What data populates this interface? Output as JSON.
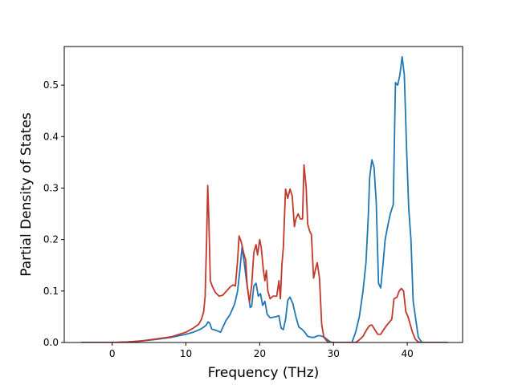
{
  "chart_data": {
    "type": "line",
    "title": "",
    "xlabel": "Frequency (THz)",
    "ylabel": "Partial Density of States",
    "xlim": [
      -6.5,
      47.5
    ],
    "ylim": [
      0,
      0.575
    ],
    "xticks": [
      "0",
      "10",
      "20",
      "30",
      "40"
    ],
    "yticks": [
      "0.0",
      "0.1",
      "0.2",
      "0.3",
      "0.4",
      "0.5"
    ],
    "grid": false,
    "legend": "none",
    "series": [
      {
        "color": "#1f77b4",
        "points": [
          [
            -4.2,
            0
          ],
          [
            0,
            0
          ],
          [
            2,
            0.001
          ],
          [
            4,
            0.003
          ],
          [
            6,
            0.006
          ],
          [
            8,
            0.01
          ],
          [
            10,
            0.016
          ],
          [
            11,
            0.02
          ],
          [
            12,
            0.026
          ],
          [
            12.7,
            0.033
          ],
          [
            13,
            0.04
          ],
          [
            13.2,
            0.038
          ],
          [
            13.5,
            0.026
          ],
          [
            14,
            0.024
          ],
          [
            14.7,
            0.02
          ],
          [
            15.4,
            0.042
          ],
          [
            16,
            0.055
          ],
          [
            16.6,
            0.075
          ],
          [
            17,
            0.1
          ],
          [
            17.3,
            0.14
          ],
          [
            17.6,
            0.185
          ],
          [
            17.9,
            0.155
          ],
          [
            18.2,
            0.12
          ],
          [
            18.5,
            0.09
          ],
          [
            18.7,
            0.068
          ],
          [
            18.9,
            0.07
          ],
          [
            19.2,
            0.11
          ],
          [
            19.5,
            0.115
          ],
          [
            19.8,
            0.09
          ],
          [
            20.1,
            0.095
          ],
          [
            20.4,
            0.072
          ],
          [
            20.7,
            0.08
          ],
          [
            21,
            0.055
          ],
          [
            21.4,
            0.048
          ],
          [
            22.2,
            0.05
          ],
          [
            22.6,
            0.052
          ],
          [
            22.9,
            0.028
          ],
          [
            23.2,
            0.025
          ],
          [
            23.5,
            0.045
          ],
          [
            23.8,
            0.082
          ],
          [
            24.1,
            0.088
          ],
          [
            24.5,
            0.075
          ],
          [
            24.9,
            0.05
          ],
          [
            25.3,
            0.03
          ],
          [
            25.7,
            0.026
          ],
          [
            26.1,
            0.02
          ],
          [
            26.5,
            0.012
          ],
          [
            27,
            0.01
          ],
          [
            27.4,
            0.01
          ],
          [
            27.8,
            0.013
          ],
          [
            28.3,
            0.013
          ],
          [
            28.8,
            0.01
          ],
          [
            29.2,
            0.005
          ],
          [
            29.6,
            0.001
          ],
          [
            30,
            0
          ],
          [
            32.5,
            0
          ],
          [
            33,
            0.02
          ],
          [
            33.5,
            0.05
          ],
          [
            34,
            0.1
          ],
          [
            34.4,
            0.155
          ],
          [
            34.7,
            0.24
          ],
          [
            34.9,
            0.32
          ],
          [
            35.2,
            0.355
          ],
          [
            35.5,
            0.34
          ],
          [
            35.8,
            0.27
          ],
          [
            36.1,
            0.115
          ],
          [
            36.4,
            0.106
          ],
          [
            36.7,
            0.15
          ],
          [
            37,
            0.2
          ],
          [
            37.4,
            0.23
          ],
          [
            37.7,
            0.25
          ],
          [
            38.1,
            0.268
          ],
          [
            38.4,
            0.505
          ],
          [
            38.7,
            0.5
          ],
          [
            39,
            0.52
          ],
          [
            39.3,
            0.555
          ],
          [
            39.6,
            0.52
          ],
          [
            39.9,
            0.38
          ],
          [
            40.2,
            0.26
          ],
          [
            40.5,
            0.2
          ],
          [
            40.8,
            0.08
          ],
          [
            41.1,
            0.05
          ],
          [
            41.5,
            0.01
          ],
          [
            42,
            0
          ],
          [
            45.5,
            0
          ]
        ]
      },
      {
        "color": "#c0392b",
        "points": [
          [
            -4.2,
            0
          ],
          [
            0,
            0
          ],
          [
            2,
            0.001
          ],
          [
            4,
            0.003
          ],
          [
            6,
            0.007
          ],
          [
            8,
            0.011
          ],
          [
            10,
            0.02
          ],
          [
            11,
            0.028
          ],
          [
            11.7,
            0.035
          ],
          [
            12.1,
            0.045
          ],
          [
            12.4,
            0.06
          ],
          [
            12.6,
            0.09
          ],
          [
            12.8,
            0.2
          ],
          [
            12.95,
            0.305
          ],
          [
            13.1,
            0.24
          ],
          [
            13.3,
            0.12
          ],
          [
            13.6,
            0.108
          ],
          [
            14,
            0.097
          ],
          [
            14.5,
            0.09
          ],
          [
            15,
            0.092
          ],
          [
            15.5,
            0.1
          ],
          [
            16,
            0.108
          ],
          [
            16.4,
            0.112
          ],
          [
            16.7,
            0.11
          ],
          [
            17,
            0.16
          ],
          [
            17.2,
            0.207
          ],
          [
            17.5,
            0.195
          ],
          [
            17.8,
            0.175
          ],
          [
            18.1,
            0.16
          ],
          [
            18.3,
            0.11
          ],
          [
            18.6,
            0.078
          ],
          [
            18.9,
            0.11
          ],
          [
            19.2,
            0.175
          ],
          [
            19.5,
            0.19
          ],
          [
            19.7,
            0.17
          ],
          [
            20,
            0.2
          ],
          [
            20.2,
            0.185
          ],
          [
            20.5,
            0.14
          ],
          [
            20.7,
            0.12
          ],
          [
            20.9,
            0.14
          ],
          [
            21.1,
            0.1
          ],
          [
            21.4,
            0.085
          ],
          [
            21.8,
            0.09
          ],
          [
            22.3,
            0.09
          ],
          [
            22.6,
            0.12
          ],
          [
            22.8,
            0.085
          ],
          [
            23,
            0.15
          ],
          [
            23.2,
            0.185
          ],
          [
            23.5,
            0.298
          ],
          [
            23.8,
            0.28
          ],
          [
            24.1,
            0.298
          ],
          [
            24.4,
            0.285
          ],
          [
            24.7,
            0.225
          ],
          [
            24.9,
            0.24
          ],
          [
            25.2,
            0.25
          ],
          [
            25.5,
            0.24
          ],
          [
            25.8,
            0.24
          ],
          [
            26,
            0.345
          ],
          [
            26.3,
            0.3
          ],
          [
            26.5,
            0.23
          ],
          [
            26.8,
            0.215
          ],
          [
            27,
            0.21
          ],
          [
            27.3,
            0.125
          ],
          [
            27.6,
            0.145
          ],
          [
            27.8,
            0.155
          ],
          [
            28.1,
            0.125
          ],
          [
            28.4,
            0.035
          ],
          [
            28.7,
            0.01
          ],
          [
            29.2,
            0.001
          ],
          [
            29.7,
            0
          ],
          [
            33,
            0
          ],
          [
            33.5,
            0.005
          ],
          [
            34,
            0.012
          ],
          [
            34.5,
            0.025
          ],
          [
            34.9,
            0.033
          ],
          [
            35.2,
            0.034
          ],
          [
            35.6,
            0.025
          ],
          [
            36,
            0.016
          ],
          [
            36.4,
            0.016
          ],
          [
            36.8,
            0.025
          ],
          [
            37.3,
            0.035
          ],
          [
            37.9,
            0.045
          ],
          [
            38.2,
            0.085
          ],
          [
            38.6,
            0.088
          ],
          [
            38.9,
            0.1
          ],
          [
            39.2,
            0.105
          ],
          [
            39.5,
            0.1
          ],
          [
            39.8,
            0.06
          ],
          [
            40.1,
            0.05
          ],
          [
            40.4,
            0.035
          ],
          [
            40.7,
            0.02
          ],
          [
            41.1,
            0.006
          ],
          [
            41.5,
            0.001
          ],
          [
            42,
            0
          ],
          [
            45.5,
            0
          ]
        ]
      }
    ]
  }
}
